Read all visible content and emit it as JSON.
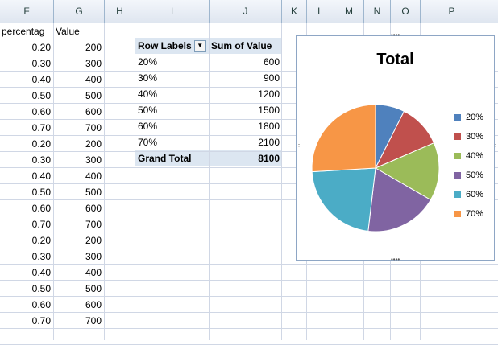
{
  "columns": [
    "F",
    "G",
    "H",
    "I",
    "J",
    "K",
    "L",
    "M",
    "N",
    "O",
    "P"
  ],
  "data_headers": {
    "percentage": "percentag",
    "value": "Value"
  },
  "rows": [
    {
      "p": "0.20",
      "v": "200"
    },
    {
      "p": "0.30",
      "v": "300"
    },
    {
      "p": "0.40",
      "v": "400"
    },
    {
      "p": "0.50",
      "v": "500"
    },
    {
      "p": "0.60",
      "v": "600"
    },
    {
      "p": "0.70",
      "v": "700"
    },
    {
      "p": "0.20",
      "v": "200"
    },
    {
      "p": "0.30",
      "v": "300"
    },
    {
      "p": "0.40",
      "v": "400"
    },
    {
      "p": "0.50",
      "v": "500"
    },
    {
      "p": "0.60",
      "v": "600"
    },
    {
      "p": "0.70",
      "v": "700"
    },
    {
      "p": "0.20",
      "v": "200"
    },
    {
      "p": "0.30",
      "v": "300"
    },
    {
      "p": "0.40",
      "v": "400"
    },
    {
      "p": "0.50",
      "v": "500"
    },
    {
      "p": "0.60",
      "v": "600"
    },
    {
      "p": "0.70",
      "v": "700"
    }
  ],
  "pivot": {
    "row_labels": "Row Labels",
    "sum_label": "Sum of Value",
    "items": [
      {
        "label": "20%",
        "value": "600"
      },
      {
        "label": "30%",
        "value": "900"
      },
      {
        "label": "40%",
        "value": "1200"
      },
      {
        "label": "50%",
        "value": "1500"
      },
      {
        "label": "60%",
        "value": "1800"
      },
      {
        "label": "70%",
        "value": "2100"
      }
    ],
    "grand_total_label": "Grand Total",
    "grand_total_value": "8100"
  },
  "chart_data": {
    "type": "pie",
    "title": "Total",
    "categories": [
      "20%",
      "30%",
      "40%",
      "50%",
      "60%",
      "70%"
    ],
    "values": [
      600,
      900,
      1200,
      1500,
      1800,
      2100
    ],
    "colors": [
      "#4f81bd",
      "#c0504d",
      "#9bbb59",
      "#8064a2",
      "#4bacc6",
      "#f79646"
    ],
    "legend": "right"
  }
}
